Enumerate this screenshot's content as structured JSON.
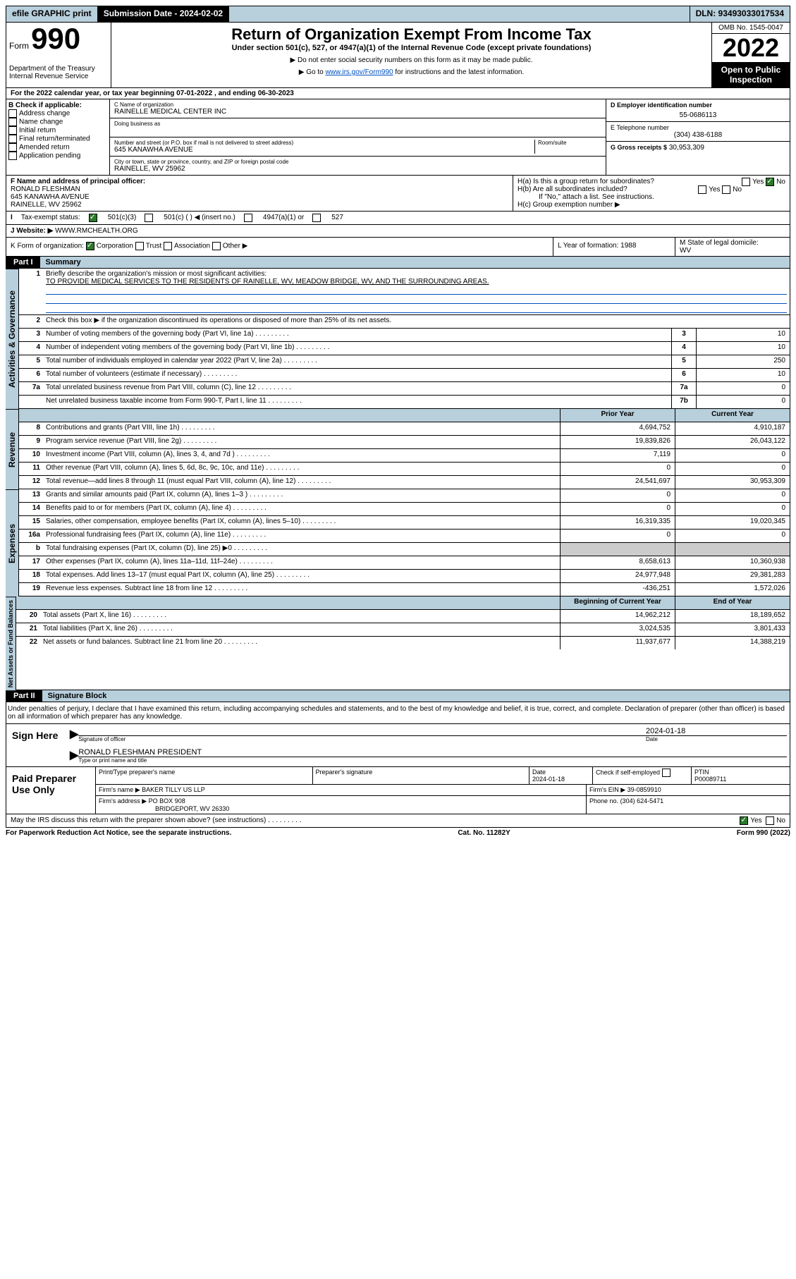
{
  "topbar": {
    "efile": "efile GRAPHIC print",
    "submission": "Submission Date - 2024-02-02",
    "dln": "DLN: 93493033017534"
  },
  "header": {
    "form_word": "Form",
    "form_num": "990",
    "dept": "Department of the Treasury",
    "irs": "Internal Revenue Service",
    "title": "Return of Organization Exempt From Income Tax",
    "sub1": "Under section 501(c), 527, or 4947(a)(1) of the Internal Revenue Code (except private foundations)",
    "sub2": "▶ Do not enter social security numbers on this form as it may be made public.",
    "sub3_pre": "▶ Go to ",
    "sub3_link": "www.irs.gov/Form990",
    "sub3_post": " for instructions and the latest information.",
    "omb": "OMB No. 1545-0047",
    "year": "2022",
    "open": "Open to Public Inspection"
  },
  "lineA": "For the 2022 calendar year, or tax year beginning 07-01-2022    , and ending 06-30-2023",
  "boxB": {
    "label": "B Check if applicable:",
    "opts": [
      "Address change",
      "Name change",
      "Initial return",
      "Final return/terminated",
      "Amended return",
      "Application pending"
    ]
  },
  "boxC": {
    "name_label": "C Name of organization",
    "name": "RAINELLE MEDICAL CENTER INC",
    "dba_label": "Doing business as",
    "addr_label": "Number and street (or P.O. box if mail is not delivered to street address)",
    "room_label": "Room/suite",
    "addr": "645 KANAWHA AVENUE",
    "city_label": "City or town, state or province, country, and ZIP or foreign postal code",
    "city": "RAINELLE, WV  25962"
  },
  "boxD": {
    "label": "D Employer identification number",
    "val": "55-0686113"
  },
  "boxE": {
    "label": "E Telephone number",
    "val": "(304) 438-6188"
  },
  "boxG": {
    "label": "G Gross receipts $",
    "val": "30,953,309"
  },
  "boxF": {
    "label": "F  Name and address of principal officer:",
    "l1": "RONALD FLESHMAN",
    "l2": "645 KANAWHA AVENUE",
    "l3": "RAINELLE, WV  25962"
  },
  "boxH": {
    "a": "H(a)  Is this a group return for subordinates?",
    "b": "H(b)  Are all subordinates included?",
    "note": "If \"No,\" attach a list. See instructions.",
    "c": "H(c)  Group exemption number ▶",
    "yes": "Yes",
    "no": "No"
  },
  "boxI": {
    "label": "Tax-exempt status:",
    "c1": "501(c)(3)",
    "c2": "501(c) (  ) ◀ (insert no.)",
    "c3": "4947(a)(1) or",
    "c4": "527"
  },
  "boxJ": {
    "label": "Website: ▶",
    "val": "WWW.RMCHEALTH.ORG"
  },
  "boxK": {
    "label": "K Form of organization:",
    "c1": "Corporation",
    "c2": "Trust",
    "c3": "Association",
    "c4": "Other ▶"
  },
  "boxL": {
    "label": "L Year of formation:",
    "val": "1988"
  },
  "boxM": {
    "label": "M State of legal domicile:",
    "val": "WV"
  },
  "part1": {
    "tag": "Part I",
    "title": "Summary"
  },
  "summary": {
    "s1_label": "Briefly describe the organization's mission or most significant activities:",
    "s1_text": "TO PROVIDE MEDICAL SERVICES TO THE RESIDENTS OF RAINELLE, WV, MEADOW BRIDGE, WV, AND THE SURROUNDING AREAS.",
    "s2": "Check this box ▶      if the organization discontinued its operations or disposed of more than 25% of its net assets.",
    "rows_single": [
      {
        "n": "3",
        "label": "Number of voting members of the governing body (Part VI, line 1a)",
        "box": "3",
        "val": "10"
      },
      {
        "n": "4",
        "label": "Number of independent voting members of the governing body (Part VI, line 1b)",
        "box": "4",
        "val": "10"
      },
      {
        "n": "5",
        "label": "Total number of individuals employed in calendar year 2022 (Part V, line 2a)",
        "box": "5",
        "val": "250"
      },
      {
        "n": "6",
        "label": "Total number of volunteers (estimate if necessary)",
        "box": "6",
        "val": "10"
      },
      {
        "n": "7a",
        "label": "Total unrelated business revenue from Part VIII, column (C), line 12",
        "box": "7a",
        "val": "0"
      },
      {
        "n": "",
        "label": "Net unrelated business taxable income from Form 990-T, Part I, line 11",
        "box": "7b",
        "val": "0"
      }
    ],
    "hdr_prior": "Prior Year",
    "hdr_curr": "Current Year",
    "rev": [
      {
        "n": "8",
        "label": "Contributions and grants (Part VIII, line 1h)",
        "p": "4,694,752",
        "c": "4,910,187"
      },
      {
        "n": "9",
        "label": "Program service revenue (Part VIII, line 2g)",
        "p": "19,839,826",
        "c": "26,043,122"
      },
      {
        "n": "10",
        "label": "Investment income (Part VIII, column (A), lines 3, 4, and 7d )",
        "p": "7,119",
        "c": "0"
      },
      {
        "n": "11",
        "label": "Other revenue (Part VIII, column (A), lines 5, 6d, 8c, 9c, 10c, and 11e)",
        "p": "0",
        "c": "0"
      },
      {
        "n": "12",
        "label": "Total revenue—add lines 8 through 11 (must equal Part VIII, column (A), line 12)",
        "p": "24,541,697",
        "c": "30,953,309"
      }
    ],
    "exp": [
      {
        "n": "13",
        "label": "Grants and similar amounts paid (Part IX, column (A), lines 1–3 )",
        "p": "0",
        "c": "0"
      },
      {
        "n": "14",
        "label": "Benefits paid to or for members (Part IX, column (A), line 4)",
        "p": "0",
        "c": "0"
      },
      {
        "n": "15",
        "label": "Salaries, other compensation, employee benefits (Part IX, column (A), lines 5–10)",
        "p": "16,319,335",
        "c": "19,020,345"
      },
      {
        "n": "16a",
        "label": "Professional fundraising fees (Part IX, column (A), line 11e)",
        "p": "0",
        "c": "0"
      },
      {
        "n": "b",
        "label": "Total fundraising expenses (Part IX, column (D), line 25) ▶0",
        "p": "",
        "c": "",
        "grey": true
      },
      {
        "n": "17",
        "label": "Other expenses (Part IX, column (A), lines 11a–11d, 11f–24e)",
        "p": "8,658,613",
        "c": "10,360,938"
      },
      {
        "n": "18",
        "label": "Total expenses. Add lines 13–17 (must equal Part IX, column (A), line 25)",
        "p": "24,977,948",
        "c": "29,381,283"
      },
      {
        "n": "19",
        "label": "Revenue less expenses. Subtract line 18 from line 12",
        "p": "-436,251",
        "c": "1,572,026"
      }
    ],
    "hdr_beg": "Beginning of Current Year",
    "hdr_end": "End of Year",
    "net": [
      {
        "n": "20",
        "label": "Total assets (Part X, line 16)",
        "p": "14,962,212",
        "c": "18,189,652"
      },
      {
        "n": "21",
        "label": "Total liabilities (Part X, line 26)",
        "p": "3,024,535",
        "c": "3,801,433"
      },
      {
        "n": "22",
        "label": "Net assets or fund balances. Subtract line 21 from line 20",
        "p": "11,937,677",
        "c": "14,388,219"
      }
    ],
    "side": {
      "a": "Activities & Governance",
      "r": "Revenue",
      "e": "Expenses",
      "n": "Net Assets or Fund Balances"
    }
  },
  "part2": {
    "tag": "Part II",
    "title": "Signature Block"
  },
  "decl": "Under penalties of perjury, I declare that I have examined this return, including accompanying schedules and statements, and to the best of my knowledge and belief, it is true, correct, and complete. Declaration of preparer (other than officer) is based on all information of which preparer has any knowledge.",
  "sign": {
    "here": "Sign Here",
    "date": "2024-01-18",
    "sig_label": "Signature of officer",
    "date_label": "Date",
    "name": "RONALD FLESHMAN  PRESIDENT",
    "name_label": "Type or print name and title"
  },
  "paid": {
    "title": "Paid Preparer Use Only",
    "h1": "Print/Type preparer's name",
    "h2": "Preparer's signature",
    "h3": "Date",
    "h4": "Check       if self-employed",
    "h5": "PTIN",
    "date": "2024-01-18",
    "ptin": "P00089711",
    "firm_name_label": "Firm's name    ▶",
    "firm_name": "BAKER TILLY US LLP",
    "firm_ein_label": "Firm's EIN ▶",
    "firm_ein": "39-0859910",
    "firm_addr_label": "Firm's address ▶",
    "firm_addr1": "PO BOX 908",
    "firm_addr2": "BRIDGEPORT, WV  26330",
    "phone_label": "Phone no.",
    "phone": "(304) 624-5471"
  },
  "discuss": "May the IRS discuss this return with the preparer shown above? (see instructions)",
  "footer": {
    "l": "For Paperwork Reduction Act Notice, see the separate instructions.",
    "m": "Cat. No. 11282Y",
    "r": "Form 990 (2022)"
  }
}
